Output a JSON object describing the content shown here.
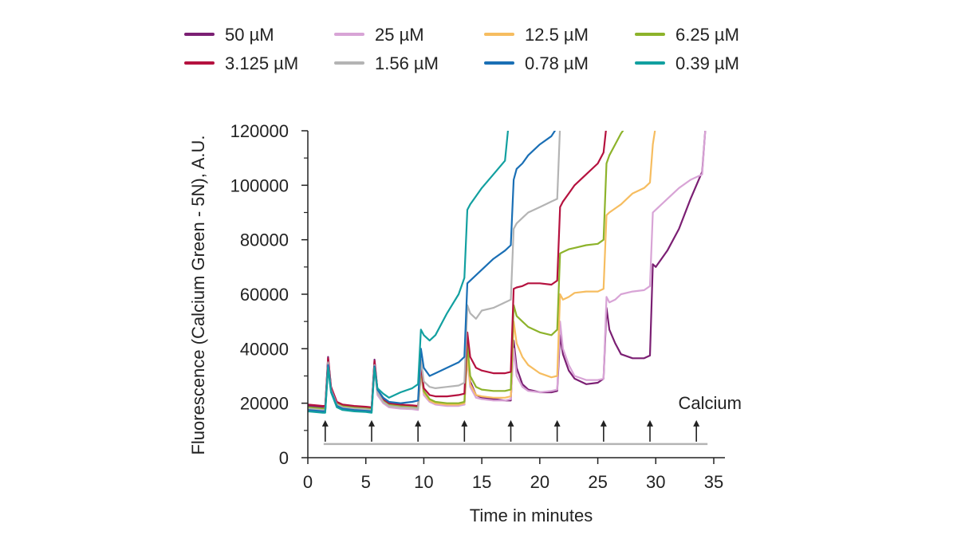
{
  "chart_data": {
    "type": "line",
    "xlabel": "Time in minutes",
    "ylabel": "Fluorescence (Calcium Green - 5N), A.U.",
    "xlim": [
      0,
      35
    ],
    "ylim": [
      0,
      120000
    ],
    "x_ticks": [
      0,
      5,
      10,
      15,
      20,
      25,
      30,
      35
    ],
    "y_ticks": [
      0,
      20000,
      40000,
      60000,
      80000,
      100000,
      120000
    ],
    "grid": false,
    "legend_position": "top",
    "annotation": {
      "label": "Calcium",
      "arrow_times": [
        1.5,
        5.5,
        9.5,
        13.5,
        17.5,
        21.5,
        25.5,
        29.5,
        33.5
      ],
      "baseline_y": 5000
    },
    "series": [
      {
        "name": "50 µM",
        "color": "#7b1f73",
        "x": [
          0,
          1.3,
          1.5,
          1.75,
          2,
          2.5,
          3,
          4,
          5,
          5.5,
          5.75,
          6,
          6.5,
          7,
          8,
          9,
          9.5,
          9.75,
          10,
          10.5,
          11,
          12,
          13,
          13.5,
          13.75,
          14,
          14.5,
          15,
          16,
          17,
          17.5,
          17.75,
          18,
          18.5,
          19,
          20,
          21,
          21.5,
          21.75,
          22,
          22.5,
          23,
          24,
          25,
          25.5,
          25.75,
          26,
          26.5,
          27,
          28,
          29,
          29.5,
          29.75,
          30,
          31,
          32,
          33,
          34,
          34.3
        ],
        "y": [
          19000,
          18500,
          18000,
          37000,
          26000,
          20000,
          19000,
          18500,
          18200,
          18000,
          36000,
          25000,
          21000,
          19500,
          19000,
          18800,
          18500,
          33000,
          24000,
          21000,
          20000,
          19500,
          19500,
          19500,
          40000,
          28000,
          23000,
          22000,
          21500,
          21000,
          21000,
          43000,
          33000,
          27000,
          25000,
          24000,
          24000,
          24500,
          45000,
          38000,
          32000,
          29000,
          27000,
          27500,
          29000,
          55000,
          47000,
          42000,
          38000,
          36500,
          36500,
          37500,
          71000,
          70000,
          76000,
          84000,
          95000,
          105000,
          122000
        ]
      },
      {
        "name": "25 µM",
        "color": "#d8a4d6",
        "x": [
          0,
          1.3,
          1.5,
          1.75,
          2,
          2.5,
          3,
          4,
          5,
          5.5,
          5.75,
          6,
          6.5,
          7,
          8,
          9,
          9.5,
          9.75,
          10,
          10.5,
          11,
          12,
          13,
          13.5,
          13.75,
          14,
          14.5,
          15,
          16,
          17,
          17.5,
          17.75,
          18,
          18.5,
          19,
          20,
          21,
          21.5,
          21.75,
          22,
          22.5,
          23,
          24,
          25,
          25.5,
          25.75,
          26,
          26.5,
          27,
          28,
          29,
          29.5,
          29.75,
          30,
          31,
          32,
          33,
          34,
          34.3
        ],
        "y": [
          17500,
          17000,
          17000,
          34000,
          24000,
          19000,
          18000,
          17500,
          17200,
          17000,
          33000,
          23000,
          20000,
          18500,
          18000,
          17800,
          17500,
          31000,
          23000,
          20500,
          19500,
          19000,
          19000,
          19500,
          36000,
          26000,
          22000,
          21500,
          21000,
          21000,
          21500,
          40000,
          30000,
          26000,
          24500,
          24000,
          24500,
          25000,
          50000,
          40000,
          34000,
          30000,
          28500,
          28500,
          29000,
          59000,
          57000,
          58000,
          60000,
          61000,
          61500,
          63000,
          90000,
          91000,
          95000,
          99000,
          102000,
          104000,
          122000
        ]
      },
      {
        "name": "12.5 µM",
        "color": "#f6bd60",
        "x": [
          0,
          1.3,
          1.5,
          1.75,
          2,
          2.5,
          3,
          4,
          5,
          5.5,
          5.75,
          6,
          6.5,
          7,
          8,
          9,
          9.5,
          9.75,
          10,
          10.5,
          11,
          12,
          13,
          13.5,
          13.75,
          14,
          14.5,
          15,
          16,
          17,
          17.5,
          17.75,
          18,
          18.5,
          19,
          20,
          21,
          21.5,
          21.75,
          22,
          22.5,
          23,
          24,
          25,
          25.5,
          25.75,
          26,
          26.5,
          27,
          28,
          29,
          29.5,
          29.75,
          30
        ],
        "y": [
          18000,
          17500,
          17500,
          35000,
          25000,
          19500,
          18500,
          18000,
          17700,
          17500,
          34000,
          24000,
          20500,
          19000,
          18500,
          18200,
          18000,
          32000,
          24000,
          21000,
          20000,
          19500,
          19500,
          20000,
          38000,
          27000,
          23000,
          22500,
          22000,
          22000,
          22500,
          50000,
          42000,
          37000,
          34000,
          31000,
          29500,
          30000,
          60000,
          58000,
          59000,
          60500,
          61000,
          61000,
          62000,
          89000,
          90000,
          91500,
          93000,
          97000,
          99000,
          101000,
          115000,
          122000
        ]
      },
      {
        "name": "6.25 µM",
        "color": "#8db32b",
        "x": [
          0,
          1.3,
          1.5,
          1.75,
          2,
          2.5,
          3,
          4,
          5,
          5.5,
          5.75,
          6,
          6.5,
          7,
          8,
          9,
          9.5,
          9.75,
          10,
          10.5,
          11,
          12,
          13,
          13.5,
          13.75,
          14,
          14.5,
          15,
          16,
          17,
          17.5,
          17.75,
          18,
          18.5,
          19,
          20,
          21,
          21.5,
          21.75,
          22,
          22.5,
          23,
          24,
          25,
          25.5,
          25.75,
          26,
          26.5,
          27,
          27.5
        ],
        "y": [
          18500,
          18000,
          18000,
          35500,
          25500,
          20000,
          19000,
          18500,
          18200,
          18000,
          34500,
          24500,
          21000,
          19500,
          19000,
          18700,
          18500,
          32500,
          24500,
          21500,
          20500,
          20000,
          20000,
          20500,
          42000,
          30000,
          26000,
          25000,
          24500,
          24500,
          25000,
          56000,
          52000,
          50000,
          48000,
          46000,
          45000,
          47000,
          75000,
          75500,
          76500,
          77000,
          78000,
          78500,
          80000,
          108000,
          111000,
          115000,
          119000,
          122000
        ]
      },
      {
        "name": "3.125 µM",
        "color": "#b5123f",
        "x": [
          0,
          1.3,
          1.5,
          1.75,
          2,
          2.5,
          3,
          4,
          5,
          5.5,
          5.75,
          6,
          6.5,
          7,
          8,
          9,
          9.5,
          9.75,
          10,
          10.5,
          11,
          12,
          13,
          13.5,
          13.75,
          14,
          14.5,
          15,
          16,
          17,
          17.5,
          17.75,
          18,
          18.5,
          19,
          20,
          21,
          21.5,
          21.75,
          22,
          22.5,
          23,
          24,
          25,
          25.5,
          25.75
        ],
        "y": [
          19500,
          19000,
          19000,
          36500,
          26000,
          20500,
          19500,
          19000,
          18700,
          18500,
          35500,
          25000,
          21500,
          20000,
          19500,
          19200,
          19000,
          34000,
          25500,
          23000,
          22500,
          22500,
          23000,
          23500,
          46000,
          37000,
          33000,
          32000,
          31000,
          31000,
          31500,
          62000,
          62500,
          63000,
          64000,
          64000,
          63500,
          65000,
          92000,
          94000,
          97000,
          100000,
          104000,
          108000,
          112000,
          122000
        ]
      },
      {
        "name": "1.56 µM",
        "color": "#b4b4b4",
        "x": [
          0,
          1.3,
          1.5,
          1.75,
          2,
          2.5,
          3,
          4,
          5,
          5.5,
          5.75,
          6,
          6.5,
          7,
          8,
          9,
          9.5,
          9.75,
          10,
          10.5,
          11,
          12,
          13,
          13.5,
          13.75,
          14,
          14.5,
          15,
          16,
          17,
          17.5,
          17.75,
          18,
          18.5,
          19,
          20,
          21,
          21.5,
          21.75
        ],
        "y": [
          18000,
          17500,
          17500,
          35000,
          25000,
          19500,
          18500,
          18000,
          17800,
          17500,
          34000,
          24000,
          20500,
          19000,
          18500,
          18300,
          18000,
          36000,
          28000,
          26000,
          25500,
          26000,
          26500,
          27500,
          56000,
          53000,
          51000,
          54000,
          55000,
          57000,
          58000,
          84000,
          86000,
          88000,
          90000,
          92000,
          94000,
          95000,
          122000
        ]
      },
      {
        "name": "0.78 µM",
        "color": "#1a6fb5",
        "x": [
          0,
          1.3,
          1.5,
          1.75,
          2,
          2.5,
          3,
          4,
          5,
          5.5,
          5.75,
          6,
          6.5,
          7,
          8,
          9,
          9.5,
          9.75,
          10,
          10.5,
          11,
          12,
          13,
          13.5,
          13.75,
          14,
          14.5,
          15,
          16,
          17,
          17.5,
          17.75,
          18,
          18.5,
          19,
          20,
          21,
          21.3
        ],
        "y": [
          17500,
          17000,
          17000,
          34000,
          24500,
          19000,
          18000,
          17500,
          17200,
          17000,
          33500,
          25000,
          22000,
          20500,
          20000,
          20500,
          21000,
          40000,
          33000,
          30000,
          31000,
          33000,
          35000,
          37000,
          64000,
          65000,
          67000,
          69000,
          73000,
          76000,
          78000,
          102000,
          106000,
          108000,
          111000,
          115000,
          118000,
          120000
        ]
      },
      {
        "name": "0.39 µM",
        "color": "#12a0a0",
        "x": [
          0,
          1.3,
          1.5,
          1.75,
          2,
          2.5,
          3,
          4,
          5,
          5.5,
          5.75,
          6,
          6.5,
          7,
          8,
          9,
          9.5,
          9.75,
          10,
          10.5,
          11,
          12,
          13,
          13.5,
          13.75,
          14,
          14.5,
          15,
          16,
          17,
          17.3
        ],
        "y": [
          17000,
          16500,
          16500,
          33000,
          24000,
          18500,
          17500,
          17000,
          16800,
          16500,
          33000,
          25500,
          23500,
          22000,
          24000,
          25500,
          27000,
          47000,
          45000,
          43000,
          45000,
          53000,
          60000,
          66000,
          91000,
          93000,
          96000,
          99000,
          104000,
          109000,
          122000
        ]
      }
    ]
  }
}
